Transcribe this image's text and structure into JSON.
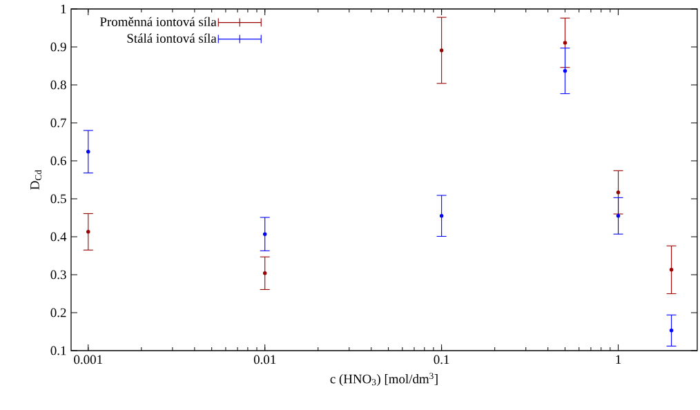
{
  "chart_data": {
    "type": "scatter",
    "xlabel": "c (HNO$_{3}$) [mol/dm$^{3}$]",
    "ylabel": "D$_{Cd}$",
    "x": [
      0.001,
      0.01,
      0.1,
      0.5,
      1,
      2
    ],
    "series": [
      {
        "name": "Proměnná iontová síla",
        "color": "#990000",
        "values": [
          0.413,
          0.304,
          0.891,
          0.911,
          0.517,
          0.313
        ],
        "errors": [
          0.048,
          0.043,
          0.087,
          0.065,
          0.057,
          0.063
        ]
      },
      {
        "name": "Stálá iontová síla",
        "color": "#0000ff",
        "values": [
          0.624,
          0.407,
          0.455,
          0.837,
          0.455,
          0.153
        ],
        "errors": [
          0.056,
          0.044,
          0.054,
          0.06,
          0.048,
          0.041
        ]
      }
    ],
    "log": "x",
    "xlim": [
      0.0008,
      2.8
    ],
    "xticks": [
      0.001,
      0.01,
      0.1,
      1
    ],
    "ylim": [
      0.1,
      1
    ],
    "yticks": [
      0.1,
      0.2,
      0.3,
      0.4,
      0.5,
      0.6,
      0.7,
      0.8,
      0.9,
      1
    ],
    "legend": "top left",
    "marker": "circle"
  }
}
